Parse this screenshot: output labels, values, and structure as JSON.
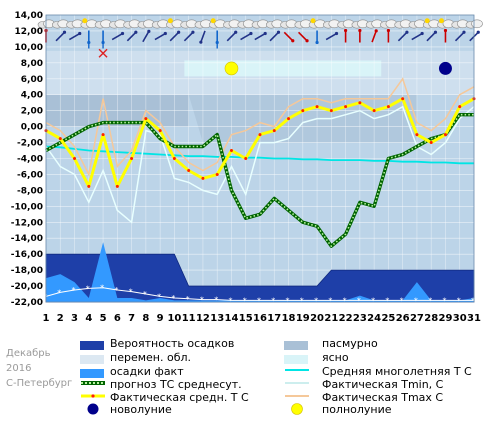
{
  "chart_data": {
    "type": "line",
    "x": [
      1,
      2,
      3,
      4,
      5,
      6,
      7,
      8,
      9,
      10,
      11,
      12,
      13,
      14,
      15,
      16,
      17,
      18,
      19,
      20,
      21,
      22,
      23,
      24,
      25,
      26,
      27,
      28,
      29,
      30,
      31
    ],
    "ylim": [
      -22,
      14
    ],
    "yticks": [
      "14,00",
      "12,00",
      "10,00",
      "8,00",
      "6,00",
      "4,00",
      "2,00",
      "0,00",
      "-2,00",
      "-4,00",
      "-6,00",
      "-8,00",
      "-10,00",
      "-12,00",
      "-14,00",
      "-16,00",
      "-18,00",
      "-20,00",
      "-22,00"
    ],
    "xticks": [
      "1",
      "2",
      "3",
      "4",
      "5",
      "6",
      "7",
      "8",
      "9",
      "10",
      "11",
      "12",
      "13",
      "14",
      "15",
      "16",
      "17",
      "18",
      "19",
      "20",
      "21",
      "22",
      "23",
      "24",
      "25",
      "26",
      "27",
      "28",
      "29",
      "30",
      "31"
    ],
    "series": [
      {
        "name": "Фактическая средн. Т С",
        "color": "#ffff00",
        "values": [
          -0.5,
          -1.5,
          -4.0,
          -7.5,
          -1.0,
          -7.5,
          -4.0,
          1.0,
          -0.5,
          -4.0,
          -5.5,
          -6.5,
          -6.0,
          -3.0,
          -4.0,
          -1.0,
          -0.5,
          1.0,
          2.0,
          2.5,
          2.0,
          2.5,
          3.0,
          2.0,
          2.5,
          3.5,
          -1.0,
          -2.0,
          -1.0,
          2.5,
          3.5
        ]
      },
      {
        "name": "Фактическая Tmin, C",
        "color": "#e8ffff",
        "values": [
          -2.5,
          -5.0,
          -6.0,
          -9.5,
          -5.5,
          -10.5,
          -12.0,
          -0.5,
          -1.0,
          -6.5,
          -7.0,
          -8.0,
          -8.5,
          -5.0,
          -8.5,
          -2.0,
          -2.0,
          -1.5,
          0.5,
          1.0,
          1.0,
          1.5,
          2.0,
          1.0,
          1.5,
          2.5,
          -2.5,
          -3.5,
          -2.0,
          1.0,
          2.5
        ]
      },
      {
        "name": "Фактическая Tmax C",
        "color": "#f5c89a",
        "values": [
          0.5,
          -0.5,
          -2.5,
          -6.0,
          3.5,
          -5.0,
          -3.0,
          2.0,
          0.5,
          -2.5,
          -4.5,
          -5.5,
          -4.5,
          -1.0,
          -0.5,
          0.5,
          0.0,
          2.5,
          3.5,
          3.5,
          3.0,
          3.5,
          3.5,
          3.5,
          3.5,
          6.0,
          0.5,
          -0.5,
          1.0,
          4.0,
          5.0
        ]
      },
      {
        "name": "прогноз ТС среднесут.",
        "color": "#006400",
        "values": [
          -3.0,
          -2.0,
          -1.0,
          0.0,
          0.5,
          0.5,
          0.5,
          0.5,
          -1.5,
          -2.5,
          -2.5,
          -2.5,
          -1.0,
          -8.0,
          -11.5,
          -11.0,
          -9.0,
          -10.5,
          -12.0,
          -12.5,
          -15.0,
          -13.5,
          -9.5,
          -10.0,
          -4.0,
          -3.5,
          -2.5,
          -1.5,
          -1.0,
          1.5,
          1.5
        ]
      },
      {
        "name": "Средняя многолетняя Т С",
        "color": "#00e5e5",
        "values": [
          -2.5,
          -2.6,
          -2.8,
          -3.0,
          -3.1,
          -3.2,
          -3.3,
          -3.4,
          -3.5,
          -3.6,
          -3.7,
          -3.7,
          -3.8,
          -3.8,
          -3.9,
          -3.9,
          -4.0,
          -4.0,
          -4.1,
          -4.1,
          -4.2,
          -4.2,
          -4.2,
          -4.3,
          -4.3,
          -4.4,
          -4.4,
          -4.5,
          -4.5,
          -4.6,
          -4.6
        ]
      },
      {
        "name": "осадки факт",
        "color": "#3399ff",
        "values": [
          -19,
          -18.5,
          -19.5,
          -21.5,
          -14.5,
          -21.5,
          -21.5,
          -21.8,
          -21.5,
          -21.8,
          -21.8,
          -21.8,
          -21.8,
          -21.8,
          -21.8,
          -21.8,
          -21.8,
          -21.8,
          -21.8,
          -21.8,
          -21.8,
          -21.8,
          -21.2,
          -21.8,
          -21.8,
          -21.8,
          -19.5,
          -21.8,
          -21.8,
          -21.8,
          -21.5
        ]
      }
    ],
    "precip_probability": [
      -16,
      -16,
      -16,
      -16,
      -16,
      -16,
      -16,
      -16,
      -16,
      -16,
      -20,
      -20,
      -20,
      -20,
      -20,
      -20,
      -20,
      -20,
      -20,
      -20,
      -18,
      -18,
      -18,
      -18,
      -18,
      -18,
      -18,
      -18,
      -18,
      -18,
      -18
    ],
    "new_moon_day": 29,
    "full_moon_day": 14
  },
  "notes": {
    "month": "Декабрь",
    "year": "2016",
    "city": "С-Петербург"
  },
  "legend": {
    "precip_prob": "Вероятность осадков",
    "cloudy": "пасмурно",
    "variable": "перемен. обл.",
    "clear": "ясно",
    "precip_fact": "осадки факт",
    "avg_longterm": "Средняя многолетняя Т С",
    "forecast": "прогноз ТС среднесут.",
    "tmin": "Фактическая Tmin, C",
    "tmean": "Фактическая средн. Т С",
    "tmax": "Фактическая Tmax C",
    "new_moon": "новолуние",
    "full_moon": "полнолуние"
  },
  "colors": {
    "plot_bg": "#bcd4e8",
    "cloudy_band": "#a9c0d6",
    "clear_band": "#d9f4f8",
    "variable_band": "#dce8f2",
    "precip_prob_fill": "#1e3fa8",
    "precip_fact_fill": "#3399ff"
  }
}
